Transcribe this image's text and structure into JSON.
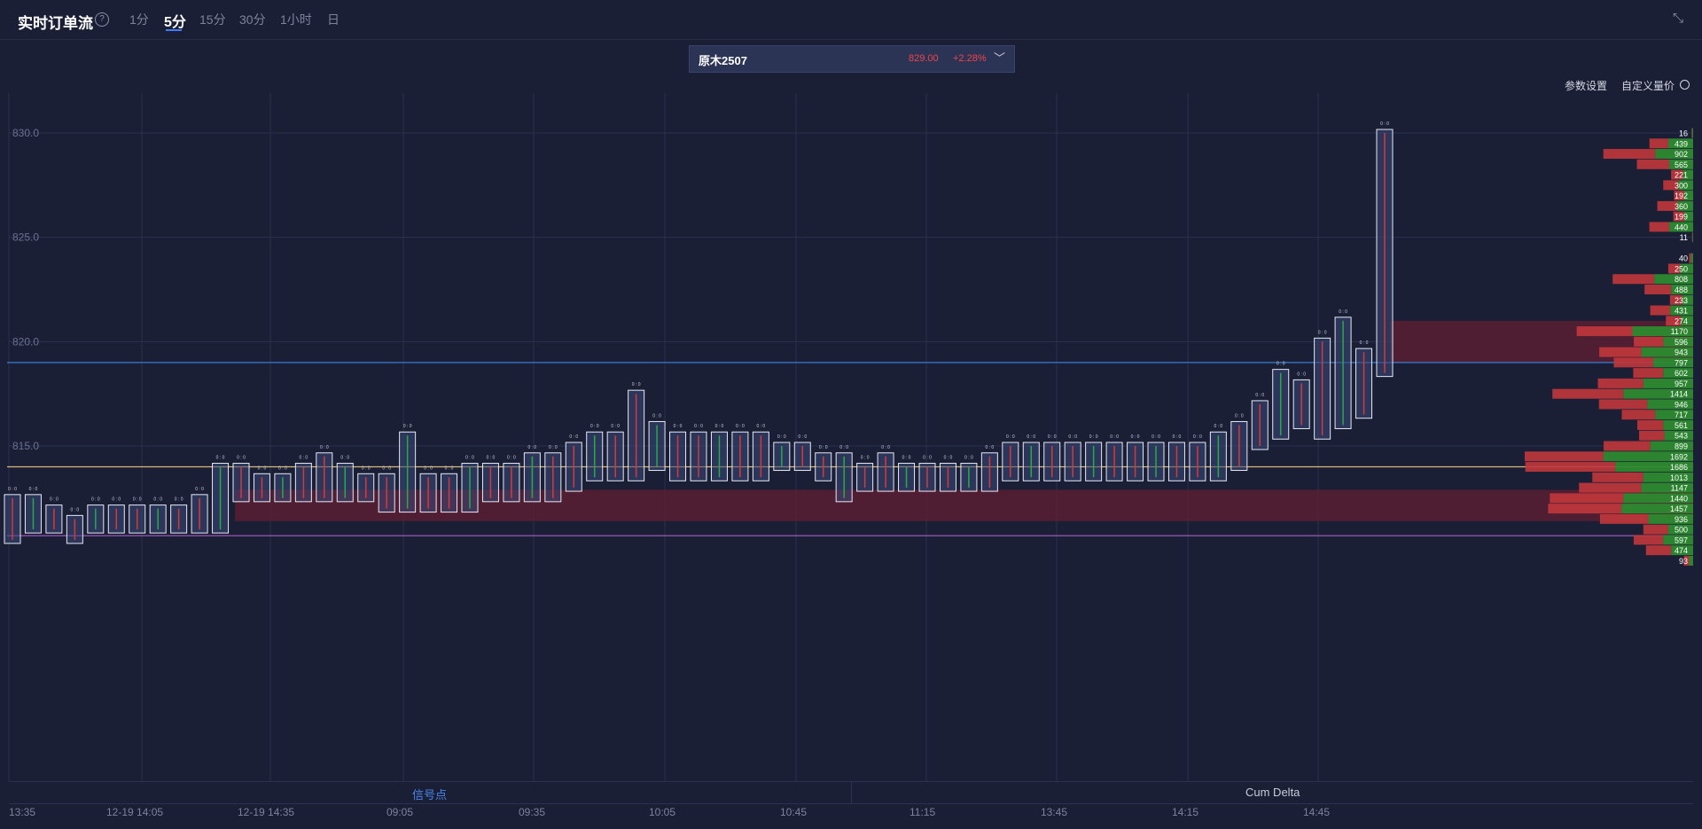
{
  "header": {
    "title": "实时订单流",
    "help": "?",
    "tabs": [
      "1分",
      "5分",
      "15分",
      "30分",
      "1小时",
      "日"
    ],
    "active_tab": "5分",
    "collapse_icon": "collapse-icon"
  },
  "symbol": {
    "name": "原木2507",
    "price": "829.00",
    "change": "+2.28%"
  },
  "toolbar": {
    "param_settings": "参数设置",
    "custom_volume_price": "自定义量价"
  },
  "side_buttons": [
    ">",
    "?"
  ],
  "chart_data": {
    "type": "footprint",
    "price_labels": [
      "830.0",
      "825.0",
      "820.0",
      "815.0"
    ],
    "price_levels": [
      830,
      825,
      820,
      815
    ],
    "ylim": [
      810.5,
      831.5
    ],
    "reference_lines": [
      {
        "price": 819.0,
        "color": "#3a7bd5"
      },
      {
        "price": 814.0,
        "color": "#d9b87a"
      },
      {
        "price": 810.7,
        "color": "#b05ac8"
      }
    ],
    "zones": [
      {
        "from": 811.4,
        "to": 812.9,
        "start_time": "12-19 14:35",
        "color": "#5a1f31"
      },
      {
        "from": 819.0,
        "to": 821.0,
        "start_time": "14:45",
        "color": "#5a1f31"
      }
    ],
    "volume_profile": [
      {
        "price": 830.0,
        "value": 16,
        "buy": 10,
        "sell": 6
      },
      {
        "price": 829.5,
        "value": 439,
        "buy": 250,
        "sell": 189
      },
      {
        "price": 829.0,
        "value": 902,
        "buy": 380,
        "sell": 522
      },
      {
        "price": 828.5,
        "value": 565,
        "buy": 240,
        "sell": 325
      },
      {
        "price": 828.0,
        "value": 221,
        "buy": 100,
        "sell": 121
      },
      {
        "price": 827.5,
        "value": 300,
        "buy": 150,
        "sell": 150
      },
      {
        "price": 827.0,
        "value": 192,
        "buy": 90,
        "sell": 102
      },
      {
        "price": 826.5,
        "value": 360,
        "buy": 160,
        "sell": 200
      },
      {
        "price": 826.0,
        "value": 199,
        "buy": 90,
        "sell": 109
      },
      {
        "price": 825.5,
        "value": 440,
        "buy": 240,
        "sell": 200
      },
      {
        "price": 825.0,
        "value": 11,
        "buy": 6,
        "sell": 5
      },
      {
        "price": 824.0,
        "value": 40,
        "buy": 20,
        "sell": 20
      },
      {
        "price": 823.5,
        "value": 250,
        "buy": 130,
        "sell": 120
      },
      {
        "price": 823.0,
        "value": 808,
        "buy": 390,
        "sell": 418
      },
      {
        "price": 822.5,
        "value": 488,
        "buy": 220,
        "sell": 268
      },
      {
        "price": 822.0,
        "value": 233,
        "buy": 110,
        "sell": 123
      },
      {
        "price": 821.5,
        "value": 431,
        "buy": 230,
        "sell": 201
      },
      {
        "price": 821.0,
        "value": 274,
        "buy": 120,
        "sell": 154
      },
      {
        "price": 820.5,
        "value": 1170,
        "buy": 610,
        "sell": 560
      },
      {
        "price": 820.0,
        "value": 596,
        "buy": 300,
        "sell": 296
      },
      {
        "price": 819.5,
        "value": 943,
        "buy": 520,
        "sell": 423
      },
      {
        "price": 819.0,
        "value": 797,
        "buy": 400,
        "sell": 397
      },
      {
        "price": 818.5,
        "value": 602,
        "buy": 300,
        "sell": 302
      },
      {
        "price": 818.0,
        "value": 957,
        "buy": 500,
        "sell": 457
      },
      {
        "price": 817.5,
        "value": 1414,
        "buy": 700,
        "sell": 714
      },
      {
        "price": 817.0,
        "value": 946,
        "buy": 460,
        "sell": 486
      },
      {
        "price": 816.5,
        "value": 717,
        "buy": 380,
        "sell": 337
      },
      {
        "price": 816.0,
        "value": 561,
        "buy": 300,
        "sell": 261
      },
      {
        "price": 815.5,
        "value": 543,
        "buy": 290,
        "sell": 253
      },
      {
        "price": 815.0,
        "value": 899,
        "buy": 430,
        "sell": 469
      },
      {
        "price": 814.5,
        "value": 1692,
        "buy": 900,
        "sell": 792
      },
      {
        "price": 814.0,
        "value": 1686,
        "buy": 780,
        "sell": 906
      },
      {
        "price": 813.5,
        "value": 1013,
        "buy": 500,
        "sell": 513
      },
      {
        "price": 813.0,
        "value": 1147,
        "buy": 520,
        "sell": 627
      },
      {
        "price": 812.5,
        "value": 1440,
        "buy": 700,
        "sell": 740
      },
      {
        "price": 812.0,
        "value": 1457,
        "buy": 720,
        "sell": 737
      },
      {
        "price": 811.5,
        "value": 936,
        "buy": 450,
        "sell": 486
      },
      {
        "price": 811.0,
        "value": 500,
        "buy": 250,
        "sell": 250
      },
      {
        "price": 810.5,
        "value": 597,
        "buy": 300,
        "sell": 297
      },
      {
        "price": 810.0,
        "value": 474,
        "buy": 220,
        "sell": 254
      },
      {
        "price": 809.5,
        "value": 93,
        "buy": 40,
        "sell": 53
      }
    ],
    "time_labels": [
      "13:35",
      "12-19 14:05",
      "12-19 14:35",
      "09:05",
      "09:35",
      "10:05",
      "10:45",
      "11:15",
      "13:45",
      "14:15",
      "14:45"
    ],
    "bars": [
      {
        "low": 810.5,
        "high": 812.5
      },
      {
        "low": 811.0,
        "high": 812.5
      },
      {
        "low": 811.0,
        "high": 812.0
      },
      {
        "low": 810.5,
        "high": 811.5
      },
      {
        "low": 811.0,
        "high": 812.0
      },
      {
        "low": 811.0,
        "high": 812.0
      },
      {
        "low": 811.0,
        "high": 812.0
      },
      {
        "low": 811.0,
        "high": 812.0
      },
      {
        "low": 811.0,
        "high": 812.0
      },
      {
        "low": 811.0,
        "high": 812.5
      },
      {
        "low": 811.0,
        "high": 814.0
      },
      {
        "low": 812.5,
        "high": 814.0
      },
      {
        "low": 812.5,
        "high": 813.5
      },
      {
        "low": 812.5,
        "high": 813.5
      },
      {
        "low": 812.5,
        "high": 814.0
      },
      {
        "low": 812.5,
        "high": 814.5
      },
      {
        "low": 812.5,
        "high": 814.0
      },
      {
        "low": 812.5,
        "high": 813.5
      },
      {
        "low": 812.0,
        "high": 813.5
      },
      {
        "low": 812.0,
        "high": 815.5
      },
      {
        "low": 812.0,
        "high": 813.5
      },
      {
        "low": 812.0,
        "high": 813.5
      },
      {
        "low": 812.0,
        "high": 814.0
      },
      {
        "low": 812.5,
        "high": 814.0
      },
      {
        "low": 812.5,
        "high": 814.0
      },
      {
        "low": 812.5,
        "high": 814.5
      },
      {
        "low": 812.5,
        "high": 814.5
      },
      {
        "low": 813.0,
        "high": 815.0
      },
      {
        "low": 813.5,
        "high": 815.5
      },
      {
        "low": 813.5,
        "high": 815.5
      },
      {
        "low": 813.5,
        "high": 817.5
      },
      {
        "low": 814.0,
        "high": 816.0
      },
      {
        "low": 813.5,
        "high": 815.5
      },
      {
        "low": 813.5,
        "high": 815.5
      },
      {
        "low": 813.5,
        "high": 815.5
      },
      {
        "low": 813.5,
        "high": 815.5
      },
      {
        "low": 813.5,
        "high": 815.5
      },
      {
        "low": 814.0,
        "high": 815.0
      },
      {
        "low": 814.0,
        "high": 815.0
      },
      {
        "low": 813.5,
        "high": 814.5
      },
      {
        "low": 812.5,
        "high": 814.5
      },
      {
        "low": 813.0,
        "high": 814.0
      },
      {
        "low": 813.0,
        "high": 814.5
      },
      {
        "low": 813.0,
        "high": 814.0
      },
      {
        "low": 813.0,
        "high": 814.0
      },
      {
        "low": 813.0,
        "high": 814.0
      },
      {
        "low": 813.0,
        "high": 814.0
      },
      {
        "low": 813.0,
        "high": 814.5
      },
      {
        "low": 813.5,
        "high": 815.0
      },
      {
        "low": 813.5,
        "high": 815.0
      },
      {
        "low": 813.5,
        "high": 815.0
      },
      {
        "low": 813.5,
        "high": 815.0
      },
      {
        "low": 813.5,
        "high": 815.0
      },
      {
        "low": 813.5,
        "high": 815.0
      },
      {
        "low": 813.5,
        "high": 815.0
      },
      {
        "low": 813.5,
        "high": 815.0
      },
      {
        "low": 813.5,
        "high": 815.0
      },
      {
        "low": 813.5,
        "high": 815.0
      },
      {
        "low": 813.5,
        "high": 815.5
      },
      {
        "low": 814.0,
        "high": 816.0
      },
      {
        "low": 815.0,
        "high": 817.0
      },
      {
        "low": 815.5,
        "high": 818.5
      },
      {
        "low": 816.0,
        "high": 818.0
      },
      {
        "low": 815.5,
        "high": 820.0
      },
      {
        "low": 816.0,
        "high": 821.0
      },
      {
        "low": 816.5,
        "high": 819.5
      },
      {
        "low": 818.5,
        "high": 830.0
      }
    ]
  },
  "bottom_panels": {
    "left": "信号点",
    "right": "Cum Delta"
  }
}
